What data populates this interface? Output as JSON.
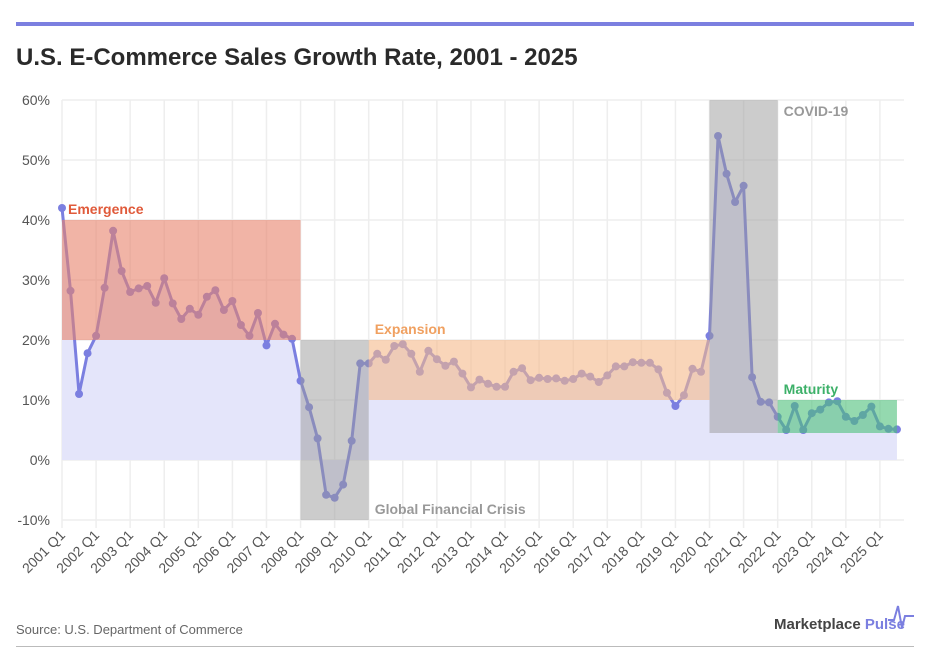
{
  "title": "U.S. E-Commerce Sales Growth Rate, 2001 - 2025",
  "source": "Source: U.S. Department of Commerce",
  "brand": {
    "name_part1": "Marketplace",
    "name_part2": "Pulse"
  },
  "colors": {
    "line": "#7b7fe0",
    "area": "#e4e5fa",
    "emergence": "#e8826a",
    "gfc": "#9a9a9a",
    "expansion": "#f5b98a",
    "covid": "#9a9a9a",
    "maturity": "#4cc07a"
  },
  "chart_data": {
    "type": "line",
    "title": "U.S. E-Commerce Sales Growth Rate, 2001 - 2025",
    "ylim": [
      -10,
      60
    ],
    "yticks": [
      -10,
      0,
      10,
      20,
      30,
      40,
      50,
      60
    ],
    "ytick_labels": [
      "-10%",
      "0%",
      "10%",
      "20%",
      "30%",
      "40%",
      "50%",
      "60%"
    ],
    "xtick_labels": [
      "2001 Q1",
      "2002 Q1",
      "2003 Q1",
      "2004 Q1",
      "2005 Q1",
      "2006 Q1",
      "2007 Q1",
      "2008 Q1",
      "2009 Q1",
      "2010 Q1",
      "2011 Q1",
      "2012 Q1",
      "2013 Q1",
      "2014 Q1",
      "2015 Q1",
      "2016 Q1",
      "2017 Q1",
      "2018 Q1",
      "2019 Q1",
      "2020 Q1",
      "2021 Q1",
      "2022 Q1",
      "2023 Q1",
      "2024 Q1",
      "2025 Q1"
    ],
    "grid": true,
    "x_start": "2001 Q1",
    "x_end": "2025 Q3",
    "values": [
      42,
      28.2,
      11,
      17.8,
      20.7,
      28.7,
      38.2,
      31.5,
      28,
      28.6,
      29,
      26.2,
      30.3,
      26.1,
      23.5,
      25.2,
      24.2,
      27.2,
      28.3,
      25,
      26.5,
      22.5,
      20.7,
      24.5,
      19.1,
      22.7,
      20.9,
      20.2,
      13.2,
      8.8,
      3.6,
      -5.8,
      -6.3,
      -4.1,
      3.2,
      16.1,
      16.1,
      17.7,
      16.7,
      19,
      19.3,
      17.7,
      14.7,
      18.2,
      16.8,
      15.7,
      16.4,
      14.4,
      12.1,
      13.4,
      12.7,
      12.2,
      12.2,
      14.7,
      15.3,
      13.3,
      13.7,
      13.5,
      13.6,
      13.2,
      13.5,
      14.4,
      13.9,
      13,
      14.1,
      15.6,
      15.6,
      16.3,
      16.2,
      16.2,
      15.1,
      11.2,
      9,
      10.8,
      15.2,
      14.7,
      20.7,
      54,
      47.7,
      43,
      45.7,
      13.8,
      9.7,
      9.6,
      7.2,
      5,
      9,
      5,
      7.8,
      8.4,
      9.6,
      9.8,
      7.2,
      6.5,
      7.5,
      8.9,
      5.6,
      5.2,
      5.1
    ],
    "annotations": [
      {
        "label": "Emergence",
        "from": "2001 Q1",
        "to": "2008 Q1",
        "y_range": [
          20,
          40
        ],
        "color_key": "emergence",
        "label_color": "#e05a3a"
      },
      {
        "label": "Global Financial Crisis",
        "from": "2008 Q1",
        "to": "2010 Q1",
        "y_range": [
          -10,
          20
        ],
        "color_key": "gfc",
        "label_color": "#999999"
      },
      {
        "label": "Expansion",
        "from": "2010 Q1",
        "to": "2020 Q1",
        "y_range": [
          10,
          20
        ],
        "color_key": "expansion",
        "label_color": "#f0a060"
      },
      {
        "label": "COVID-19",
        "from": "2020 Q1",
        "to": "2022 Q1",
        "y_range": [
          4.5,
          60
        ],
        "color_key": "covid",
        "label_color": "#999999"
      },
      {
        "label": "Maturity",
        "from": "2022 Q1",
        "to": "2025 Q3",
        "y_range": [
          4.5,
          10
        ],
        "color_key": "maturity",
        "label_color": "#3cb068"
      }
    ]
  }
}
